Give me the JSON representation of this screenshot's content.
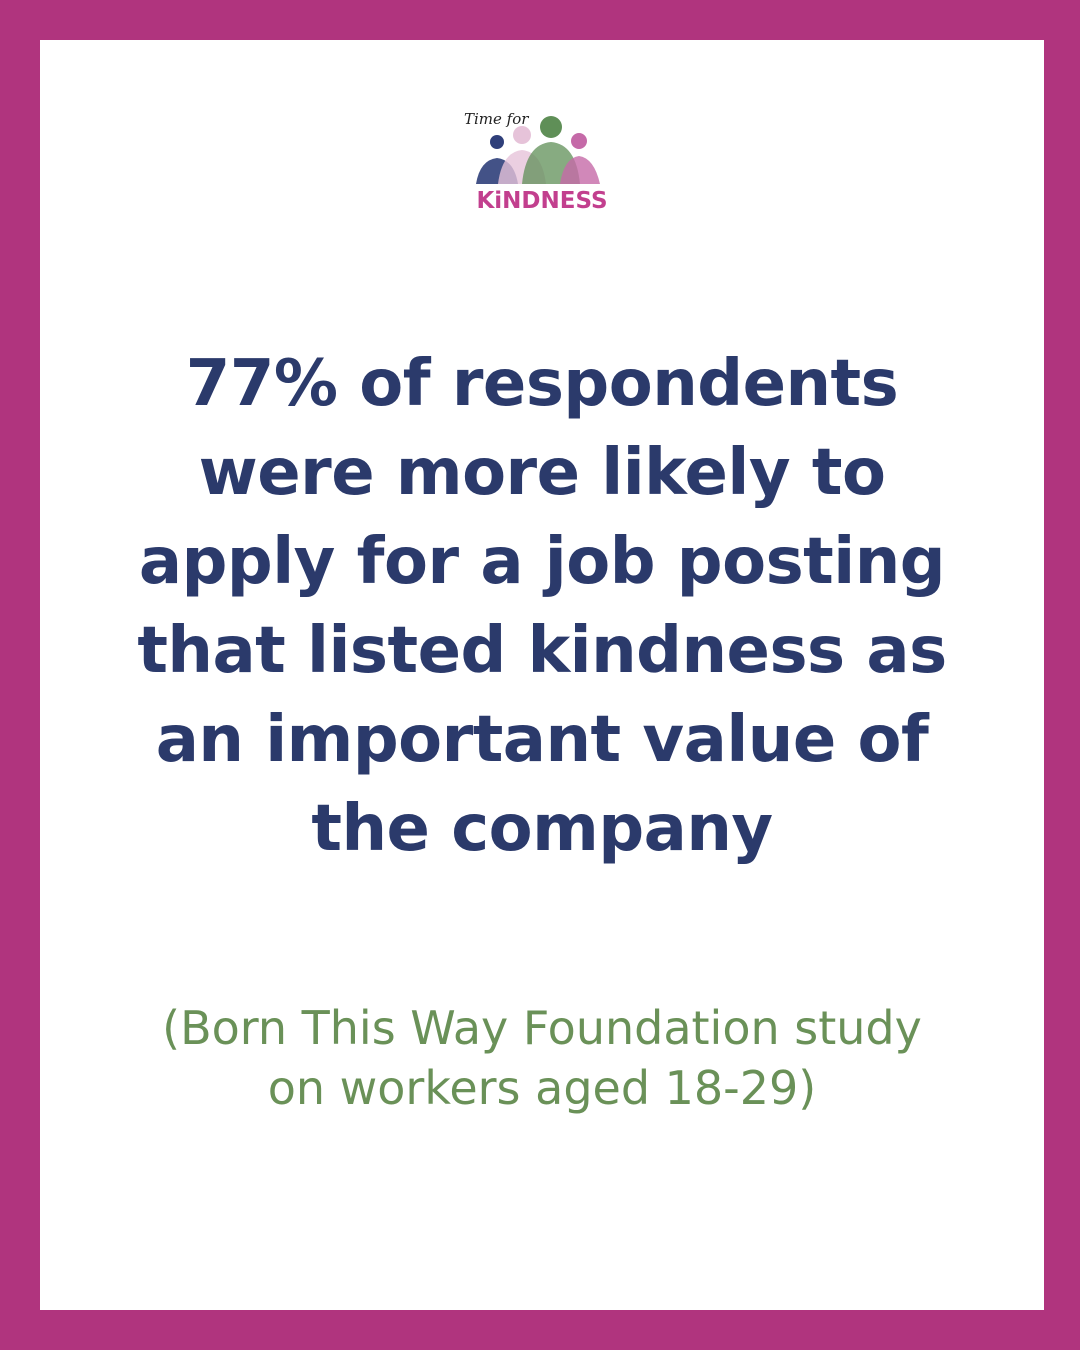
{
  "logo": {
    "tagline": "Time for",
    "name": "KiNDNESS"
  },
  "statement": {
    "lines": [
      "77% of respondents",
      "were more likely to",
      "apply for a job posting",
      "that listed kindness as",
      "an important value of",
      "the company"
    ]
  },
  "source": {
    "lines": [
      "(Born This Way Foundation study",
      "on workers aged 18-29)"
    ]
  }
}
